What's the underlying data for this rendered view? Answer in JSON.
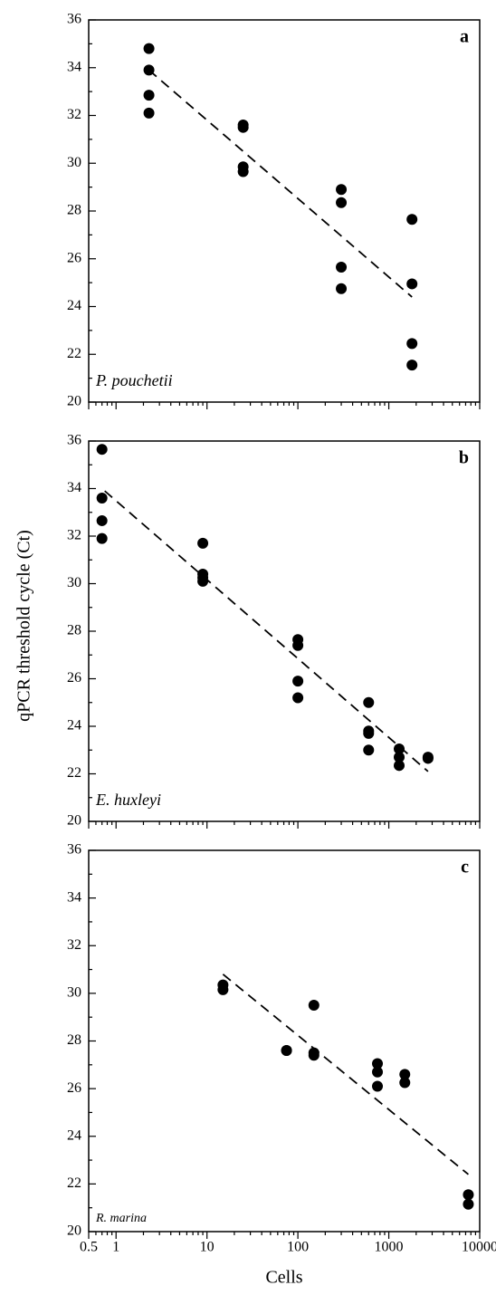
{
  "chart_data": [
    {
      "type": "scatter",
      "label": "a",
      "annotation": "P. pouchetii",
      "xscale": "log",
      "color": "#000000",
      "x": [
        2.3,
        2.3,
        2.3,
        2.3,
        25,
        25,
        25,
        25,
        300,
        300,
        300,
        300,
        1800,
        1800,
        1800,
        1800
      ],
      "values": [
        34.8,
        33.9,
        32.85,
        32.1,
        31.6,
        31.5,
        29.85,
        29.65,
        28.9,
        28.35,
        25.65,
        24.75,
        27.65,
        24.95,
        22.45,
        21.55
      ],
      "fit": {
        "x": [
          2.3,
          1800
        ],
        "values": [
          33.9,
          24.4
        ]
      },
      "xlim": [
        0.5,
        10000
      ],
      "xticks": [
        0.5,
        1,
        10,
        100,
        1000,
        10000
      ],
      "ylim": [
        20,
        36
      ],
      "yticks": [
        20,
        22,
        24,
        26,
        28,
        30,
        32,
        34,
        36
      ]
    },
    {
      "type": "scatter",
      "label": "b",
      "annotation": "E. huxleyi",
      "xscale": "log",
      "color": "#000000",
      "ylabel": "qPCR threshold cycle (Ct)",
      "x": [
        0.7,
        0.7,
        0.7,
        0.7,
        9,
        9,
        9,
        9,
        100,
        100,
        100,
        100,
        600,
        600,
        600,
        600,
        1300,
        1300,
        1300,
        2700,
        2700
      ],
      "values": [
        35.65,
        33.6,
        32.65,
        31.9,
        31.7,
        30.4,
        30.25,
        30.1,
        27.65,
        27.4,
        25.9,
        25.2,
        25.0,
        23.8,
        23.7,
        23.0,
        23.05,
        22.7,
        22.35,
        22.7,
        22.65
      ],
      "fit": {
        "x": [
          0.75,
          2700
        ],
        "values": [
          33.9,
          22.1
        ]
      },
      "xlim": [
        0.5,
        10000
      ],
      "xticks": [
        0.5,
        1,
        10,
        100,
        1000,
        10000
      ],
      "ylim": [
        20,
        36
      ],
      "yticks": [
        20,
        22,
        24,
        26,
        28,
        30,
        32,
        34,
        36
      ]
    },
    {
      "type": "scatter",
      "label": "c",
      "annotation": "R. marina",
      "xscale": "log",
      "color": "#000000",
      "xlabel": "Cells",
      "x": [
        15,
        15,
        75,
        75,
        150,
        150,
        150,
        750,
        750,
        750,
        1500,
        1500,
        7500,
        7500
      ],
      "values": [
        30.35,
        30.15,
        27.6,
        27.6,
        29.5,
        27.5,
        27.4,
        27.05,
        26.7,
        26.1,
        26.6,
        26.25,
        21.55,
        21.15
      ],
      "fit": {
        "x": [
          15,
          7500
        ],
        "values": [
          30.8,
          22.4
        ]
      },
      "xlim": [
        0.5,
        10000
      ],
      "xticks": [
        0.5,
        1,
        10,
        100,
        1000,
        10000
      ],
      "ylim": [
        20,
        36
      ],
      "yticks": [
        20,
        22,
        24,
        26,
        28,
        30,
        32,
        34,
        36
      ]
    }
  ]
}
